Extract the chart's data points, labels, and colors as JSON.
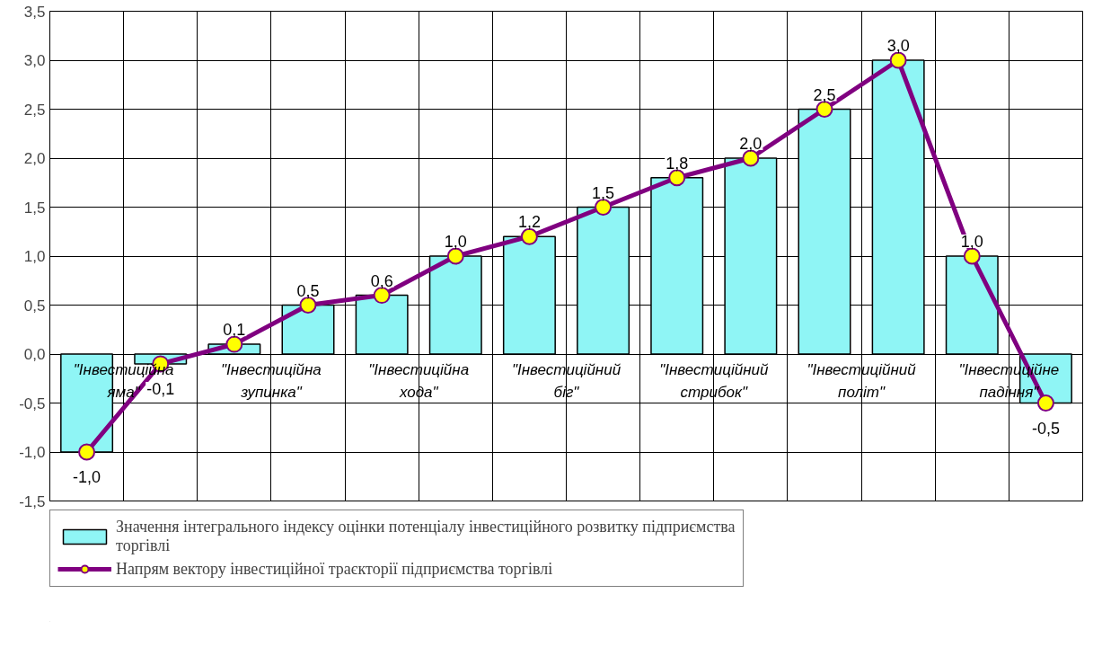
{
  "chart_data": {
    "type": "bar",
    "categories": [
      null,
      null,
      null,
      null,
      null,
      null,
      null,
      null,
      null,
      null,
      null,
      null,
      null,
      null
    ],
    "annotations": [
      "\"Інвестиційна яма\"",
      "\"Інвестиційна зупинка\"",
      "\"Інвестиційна хода\"",
      "\"Інвестиційний біг\"",
      "\"Інвестиційний стрибок\"",
      "\"Інвестиційний політ\"",
      "\"Інвестиційне падіння\""
    ],
    "series": [
      {
        "name": "Значення інтегрального індексу оцінки потенціалу інвестиційного розвитку підприємства торгівлі",
        "color": "#8ff5f5",
        "values": [
          -1.0,
          -0.1,
          0.1,
          0.5,
          0.6,
          1.0,
          1.2,
          1.5,
          1.8,
          2.0,
          2.5,
          3.0,
          1.0,
          -0.5
        ]
      },
      {
        "name": "Напрям вектору інвестиційної траєкторії підприємства торгівлі",
        "type": "line",
        "color": "#800080",
        "marker": "circle",
        "values": [
          -1.0,
          -0.1,
          0.1,
          0.5,
          0.6,
          1.0,
          1.2,
          1.5,
          1.8,
          2.0,
          2.5,
          3.0,
          1.0,
          -0.5
        ],
        "value_labels": [
          "-1,0",
          "-0,1",
          "0,1",
          "0,5",
          "0,6",
          "1,0",
          "1,2",
          "1,5",
          "1,8",
          "2,0",
          "2,5",
          "3,0",
          "1,0",
          "-0,5"
        ]
      }
    ],
    "ylim": [
      -1.5,
      3.5
    ],
    "yticks": [
      {
        "value": -1.5,
        "label": "-1,5"
      },
      {
        "value": -1.0,
        "label": "-1,0"
      },
      {
        "value": -0.5,
        "label": "-0,5"
      },
      {
        "value": 0.0,
        "label": "0,0"
      },
      {
        "value": 0.5,
        "label": "0,5"
      },
      {
        "value": 1.0,
        "label": "1,0"
      },
      {
        "value": 1.5,
        "label": "1,5"
      },
      {
        "value": 2.0,
        "label": "2,0"
      },
      {
        "value": 2.5,
        "label": "2,5"
      },
      {
        "value": 3.0,
        "label": "3,0"
      },
      {
        "value": 3.5,
        "label": "3,5"
      }
    ],
    "grid": true,
    "legend": "bottom",
    "tick_labels": "y"
  }
}
